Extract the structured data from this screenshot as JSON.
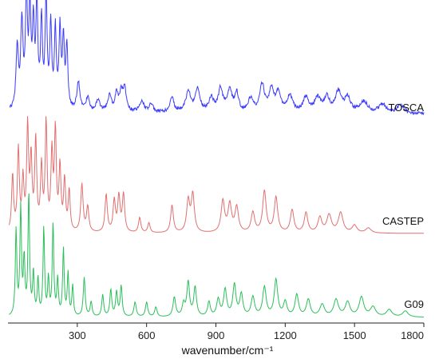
{
  "chart_data": {
    "type": "line",
    "title": "",
    "xlabel": "wavenumber/cm⁻¹",
    "ylabel": "",
    "xlim": [
      0,
      1800
    ],
    "x_ticks": [
      300,
      600,
      900,
      1200,
      1500,
      1800
    ],
    "x_tick_labels": [
      "300",
      "600",
      "900",
      "1200",
      "1500",
      "1800"
    ],
    "grid": false,
    "stacked_offset_traces": true,
    "series": [
      {
        "name": "TOSCA",
        "color": "#3b3bff",
        "style": "experimental-noisy",
        "peaks": [
          [
            40,
            0.55,
            6
          ],
          [
            60,
            0.75,
            6
          ],
          [
            80,
            1.0,
            5
          ],
          [
            95,
            0.85,
            5
          ],
          [
            110,
            0.7,
            5
          ],
          [
            125,
            0.9,
            5
          ],
          [
            145,
            0.75,
            5
          ],
          [
            165,
            0.98,
            5
          ],
          [
            185,
            0.72,
            5
          ],
          [
            205,
            0.68,
            5
          ],
          [
            225,
            0.7,
            5
          ],
          [
            240,
            0.6,
            5
          ],
          [
            255,
            0.55,
            5
          ],
          [
            305,
            0.25,
            8
          ],
          [
            345,
            0.12,
            8
          ],
          [
            390,
            0.1,
            10
          ],
          [
            440,
            0.14,
            9
          ],
          [
            470,
            0.15,
            8
          ],
          [
            490,
            0.16,
            8
          ],
          [
            505,
            0.2,
            8
          ],
          [
            580,
            0.1,
            10
          ],
          [
            620,
            0.07,
            10
          ],
          [
            710,
            0.13,
            10
          ],
          [
            780,
            0.18,
            12
          ],
          [
            820,
            0.2,
            12
          ],
          [
            880,
            0.12,
            12
          ],
          [
            920,
            0.2,
            12
          ],
          [
            960,
            0.18,
            12
          ],
          [
            990,
            0.16,
            10
          ],
          [
            1050,
            0.12,
            12
          ],
          [
            1100,
            0.24,
            12
          ],
          [
            1140,
            0.2,
            12
          ],
          [
            1170,
            0.17,
            12
          ],
          [
            1220,
            0.14,
            15
          ],
          [
            1290,
            0.13,
            15
          ],
          [
            1340,
            0.12,
            15
          ],
          [
            1380,
            0.13,
            15
          ],
          [
            1430,
            0.18,
            15
          ],
          [
            1470,
            0.13,
            15
          ],
          [
            1540,
            0.1,
            20
          ],
          [
            1620,
            0.08,
            20
          ],
          [
            1700,
            0.07,
            20
          ]
        ]
      },
      {
        "name": "CASTEP",
        "color": "#e07070",
        "style": "calculated",
        "peaks": [
          [
            20,
            0.45,
            5
          ],
          [
            45,
            0.65,
            5
          ],
          [
            65,
            0.4,
            5
          ],
          [
            85,
            0.82,
            5
          ],
          [
            100,
            0.55,
            5
          ],
          [
            120,
            0.72,
            5
          ],
          [
            145,
            0.5,
            5
          ],
          [
            165,
            0.85,
            5
          ],
          [
            190,
            0.6,
            5
          ],
          [
            205,
            0.78,
            5
          ],
          [
            225,
            0.5,
            5
          ],
          [
            245,
            0.4,
            5
          ],
          [
            265,
            0.32,
            5
          ],
          [
            320,
            0.38,
            6
          ],
          [
            345,
            0.2,
            6
          ],
          [
            425,
            0.3,
            6
          ],
          [
            460,
            0.25,
            6
          ],
          [
            480,
            0.28,
            6
          ],
          [
            500,
            0.3,
            6
          ],
          [
            570,
            0.12,
            6
          ],
          [
            610,
            0.08,
            6
          ],
          [
            710,
            0.22,
            7
          ],
          [
            780,
            0.25,
            8
          ],
          [
            800,
            0.3,
            8
          ],
          [
            930,
            0.25,
            9
          ],
          [
            960,
            0.22,
            9
          ],
          [
            990,
            0.2,
            9
          ],
          [
            1060,
            0.16,
            9
          ],
          [
            1110,
            0.33,
            9
          ],
          [
            1160,
            0.28,
            9
          ],
          [
            1230,
            0.18,
            9
          ],
          [
            1290,
            0.16,
            9
          ],
          [
            1350,
            0.12,
            10
          ],
          [
            1390,
            0.14,
            12
          ],
          [
            1440,
            0.16,
            12
          ],
          [
            1500,
            0.06,
            12
          ],
          [
            1560,
            0.04,
            14
          ]
        ]
      },
      {
        "name": "G09",
        "color": "#2bbf5a",
        "style": "calculated",
        "peaks": [
          [
            35,
            0.7,
            4
          ],
          [
            55,
            0.88,
            4
          ],
          [
            70,
            0.45,
            4
          ],
          [
            90,
            1.0,
            4
          ],
          [
            110,
            0.35,
            4
          ],
          [
            130,
            0.3,
            4
          ],
          [
            155,
            0.72,
            4
          ],
          [
            175,
            0.3,
            4
          ],
          [
            195,
            0.75,
            4
          ],
          [
            215,
            0.3,
            4
          ],
          [
            240,
            0.55,
            4
          ],
          [
            260,
            0.35,
            4
          ],
          [
            280,
            0.25,
            4
          ],
          [
            330,
            0.32,
            5
          ],
          [
            360,
            0.12,
            5
          ],
          [
            410,
            0.18,
            5
          ],
          [
            445,
            0.22,
            5
          ],
          [
            470,
            0.2,
            5
          ],
          [
            490,
            0.25,
            5
          ],
          [
            550,
            0.12,
            6
          ],
          [
            600,
            0.12,
            6
          ],
          [
            640,
            0.08,
            6
          ],
          [
            720,
            0.16,
            7
          ],
          [
            760,
            0.1,
            7
          ],
          [
            780,
            0.28,
            7
          ],
          [
            810,
            0.24,
            7
          ],
          [
            870,
            0.12,
            7
          ],
          [
            910,
            0.14,
            8
          ],
          [
            940,
            0.22,
            8
          ],
          [
            980,
            0.26,
            8
          ],
          [
            1010,
            0.18,
            8
          ],
          [
            1060,
            0.16,
            9
          ],
          [
            1110,
            0.24,
            9
          ],
          [
            1160,
            0.3,
            9
          ],
          [
            1200,
            0.12,
            9
          ],
          [
            1250,
            0.18,
            9
          ],
          [
            1300,
            0.14,
            10
          ],
          [
            1360,
            0.1,
            12
          ],
          [
            1420,
            0.14,
            12
          ],
          [
            1470,
            0.12,
            12
          ],
          [
            1530,
            0.16,
            12
          ],
          [
            1580,
            0.08,
            14
          ],
          [
            1650,
            0.06,
            14
          ],
          [
            1720,
            0.05,
            14
          ]
        ]
      }
    ]
  }
}
